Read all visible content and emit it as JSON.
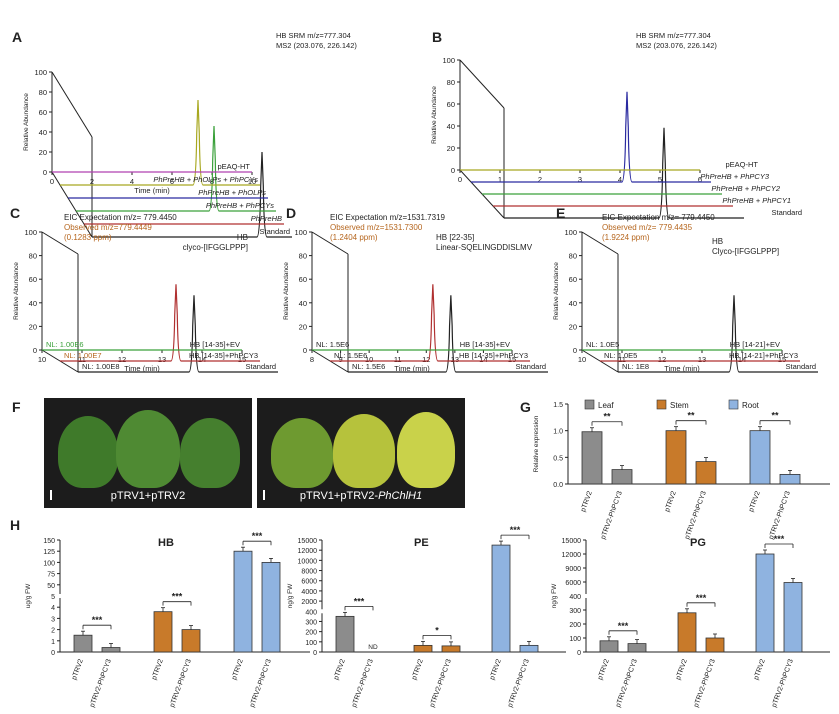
{
  "panels": {
    "A": {
      "letter": "A",
      "annotation_lines": [
        "HB SRM m/z=777.304",
        "MS2 (203.076, 226.142)"
      ],
      "y_axis_label": "Relative Abundance",
      "y_ticks": [
        "0",
        "20",
        "40",
        "60",
        "80",
        "100"
      ],
      "x_axis_label": "Time (min)",
      "x_ticks": [
        "0",
        "2",
        "4",
        "6",
        "8",
        "10"
      ],
      "traces": [
        {
          "label": "Standard",
          "italic": false,
          "color": "#222222"
        },
        {
          "label": "PhPreHB",
          "italic": true,
          "color": "#b03030"
        },
        {
          "label": "PhPreHB + PhPCYs",
          "italic": true,
          "color": "#3aa03a"
        },
        {
          "label": "PhPreHB + PhOLPs",
          "italic": true,
          "color": "#2a2aa0"
        },
        {
          "label": "PhPreHB + PhOLPs + PhPCYs",
          "italic": true,
          "color": "#a8a820"
        },
        {
          "label": "pEAQ-HT",
          "italic": false,
          "color": "#b040b0"
        }
      ]
    },
    "B": {
      "letter": "B",
      "annotation_lines": [
        "HB SRM m/z=777.304",
        "MS2 (203.076, 226.142)"
      ],
      "y_axis_label": "Relative Abundance",
      "y_ticks": [
        "0",
        "20",
        "40",
        "60",
        "80",
        "100"
      ],
      "x_ticks": [
        "0",
        "1",
        "2",
        "3",
        "4",
        "5",
        "6"
      ],
      "traces": [
        {
          "label": "Standard",
          "italic": false,
          "color": "#222222"
        },
        {
          "label": "PhPreHB + PhPCY1",
          "italic": true,
          "color": "#b03030"
        },
        {
          "label": "PhPreHB + PhPCY2",
          "italic": true,
          "color": "#3aa03a"
        },
        {
          "label": "PhPreHB + PhPCY3",
          "italic": true,
          "color": "#2a2aa0"
        },
        {
          "label": "pEAQ-HT",
          "italic": false,
          "color": "#a8a820"
        }
      ]
    },
    "C": {
      "letter": "C",
      "eic_line": "EIC Expectation m/z= 779.4450",
      "observed_lines": [
        "Observed m/z=779.4449",
        "(0.1283 ppm)"
      ],
      "compound_lines": [
        "HB",
        "clyco-[IFGGLPPP]"
      ],
      "y_axis_label": "Relative Abundance",
      "y_ticks": [
        "0",
        "20",
        "40",
        "60",
        "80",
        "100"
      ],
      "x_axis_label": "Time (min)",
      "x_ticks": [
        "10",
        "11",
        "12",
        "13",
        "14",
        "15"
      ],
      "traces": [
        {
          "nl": "NL: 1.00E8",
          "label": "Standard",
          "color": "#222222"
        },
        {
          "nl": "NL: 1.00E7",
          "label": "HB [14-35]+PhPCY3",
          "color": "#b03030"
        },
        {
          "nl": "NL: 1.00E6",
          "label": "HB [14-35]+EV",
          "color": "#3aa03a"
        }
      ]
    },
    "D": {
      "letter": "D",
      "eic_line": "EIC Expectation m/z=1531.7319",
      "observed_lines": [
        "Observed m/z=1531.7300",
        "(1.2404 ppm)"
      ],
      "compound_lines": [
        "HB [22-35]",
        "Linear-SQELINGDDISLMV"
      ],
      "y_axis_label": "Relative Abundance",
      "y_ticks": [
        "0",
        "20",
        "40",
        "60",
        "80",
        "100"
      ],
      "x_axis_label": "Time (min)",
      "x_ticks": [
        "8",
        "9",
        "10",
        "11",
        "12",
        "13",
        "14",
        "15"
      ],
      "traces": [
        {
          "nl": "NL: 1.5E6",
          "label": "Standard",
          "color": "#222222"
        },
        {
          "nl": "NL: 1.5E6",
          "label": "HB [14-35]+PhPCY3",
          "color": "#b03030"
        },
        {
          "nl": "NL: 1.5E6",
          "label": "HB [14-35]+EV",
          "color": "#3aa03a"
        }
      ]
    },
    "E": {
      "letter": "E",
      "eic_line": "EIC Expectation m/z= 779.4450",
      "observed_lines": [
        "Observed m/z= 779.4435",
        "(1.9224 ppm)"
      ],
      "compound_lines": [
        "HB",
        "Clyco-[IFGGLPPP]"
      ],
      "y_axis_label": "Relative Abundance",
      "y_ticks": [
        "0",
        "20",
        "40",
        "60",
        "80",
        "100"
      ],
      "x_axis_label": "Time (min)",
      "x_ticks": [
        "10",
        "11",
        "12",
        "13",
        "14",
        "15"
      ],
      "traces": [
        {
          "nl": "NL: 1E8",
          "label": "Standard",
          "color": "#222222"
        },
        {
          "nl": "NL: 1.0E5",
          "label": "HB [14-21]+PhPCY3",
          "color": "#b03030"
        },
        {
          "nl": "NL: 1.0E5",
          "label": "HB [14-21]+EV",
          "color": "#3aa03a"
        }
      ]
    },
    "F": {
      "letter": "F",
      "photo_left_caption": "pTRV1+pTRV2",
      "photo_right_caption_prefix": "pTRV1+pTRV2-",
      "photo_right_caption_gene": "PhChlH1"
    },
    "G": {
      "letter": "G"
    },
    "H": {
      "letter": "H"
    }
  },
  "colors": {
    "leaf": "#8c8c8c",
    "stem": "#c87a2a",
    "root": "#8fb3e0",
    "ink": "#222222",
    "brown_text": "#b5651d",
    "green_text": "#3aa03a"
  },
  "chart_data": [
    {
      "id": "A",
      "type": "line",
      "title": "HB SRM m/z=777.304 MS2 (203.076, 226.142)",
      "xlabel": "Time (min)",
      "ylabel": "Relative Abundance",
      "xlim": [
        0,
        10
      ],
      "ylim": [
        0,
        100
      ],
      "series": [
        {
          "name": "Standard",
          "peak_x": 8.5,
          "peak_y": 100
        },
        {
          "name": "PhPreHB",
          "peak_x": null,
          "peak_y": 0
        },
        {
          "name": "PhPreHB + PhPCYs",
          "peak_x": 6.9,
          "peak_y": 100
        },
        {
          "name": "PhPreHB + PhOLPs",
          "peak_x": null,
          "peak_y": 0
        },
        {
          "name": "PhPreHB + PhOLPs + PhPCYs",
          "peak_x": 6.9,
          "peak_y": 100
        },
        {
          "name": "pEAQ-HT",
          "peak_x": null,
          "peak_y": 0
        }
      ]
    },
    {
      "id": "B",
      "type": "line",
      "title": "HB SRM m/z=777.304 MS2 (203.076, 226.142)",
      "ylabel": "Relative Abundance",
      "xlim": [
        0,
        6
      ],
      "ylim": [
        0,
        100
      ],
      "series": [
        {
          "name": "Standard",
          "peak_x": 4.0,
          "peak_y": 100
        },
        {
          "name": "PhPreHB + PhPCY1",
          "peak_x": null,
          "peak_y": 0
        },
        {
          "name": "PhPreHB + PhPCY2",
          "peak_x": null,
          "peak_y": 0
        },
        {
          "name": "PhPreHB + PhPCY3",
          "peak_x": 3.9,
          "peak_y": 100
        },
        {
          "name": "pEAQ-HT",
          "peak_x": null,
          "peak_y": 0
        }
      ]
    },
    {
      "id": "C",
      "type": "line",
      "xlabel": "Time (min)",
      "ylabel": "Relative Abundance",
      "xlim": [
        10,
        15
      ],
      "ylim": [
        0,
        100
      ],
      "series": [
        {
          "name": "Standard",
          "peak_x": 12.9,
          "peak_y": 100
        },
        {
          "name": "HB [14-35]+PhPCY3",
          "peak_x": 12.9,
          "peak_y": 100
        },
        {
          "name": "HB [14-35]+EV",
          "peak_x": null,
          "peak_y": 0
        }
      ]
    },
    {
      "id": "D",
      "type": "line",
      "xlabel": "Time (min)",
      "ylabel": "Relative Abundance",
      "xlim": [
        8,
        15
      ],
      "ylim": [
        0,
        100
      ],
      "series": [
        {
          "name": "Standard",
          "peak_x": 11.6,
          "peak_y": 100
        },
        {
          "name": "HB [14-35]+PhPCY3",
          "peak_x": 11.6,
          "peak_y": 100
        },
        {
          "name": "HB [14-35]+EV",
          "peak_x": null,
          "peak_y": 0
        }
      ]
    },
    {
      "id": "E",
      "type": "line",
      "xlabel": "Time (min)",
      "ylabel": "Relative Abundance",
      "xlim": [
        10,
        15
      ],
      "ylim": [
        0,
        100
      ],
      "series": [
        {
          "name": "Standard",
          "peak_x": 12.9,
          "peak_y": 100
        },
        {
          "name": "HB [14-21]+PhPCY3",
          "peak_x": null,
          "peak_y": 0
        },
        {
          "name": "HB [14-21]+EV",
          "peak_x": null,
          "peak_y": 0
        }
      ]
    },
    {
      "id": "G",
      "type": "bar",
      "ylabel": "Relative expression",
      "ylim": [
        0,
        1.5
      ],
      "y_ticks": [
        "0.0",
        "0.5",
        "1.0",
        "1.5"
      ],
      "legend": [
        "Leaf",
        "Stem",
        "Root"
      ],
      "legend_position": "top",
      "groups": [
        {
          "tissue": "Leaf",
          "categories": [
            "pTRV2",
            "pTRV2-PhPCY3"
          ],
          "values": [
            0.98,
            0.27
          ],
          "sig": "**"
        },
        {
          "tissue": "Stem",
          "categories": [
            "pTRV2",
            "pTRV2-PhPCY3"
          ],
          "values": [
            1.0,
            0.42
          ],
          "sig": "**"
        },
        {
          "tissue": "Root",
          "categories": [
            "pTRV2",
            "pTRV2-PhPCY3"
          ],
          "values": [
            1.0,
            0.18
          ],
          "sig": "**"
        }
      ]
    },
    {
      "id": "H-HB",
      "type": "bar",
      "title": "HB",
      "ylabel": "ug/g FW",
      "y_ticks": [
        "0",
        "1",
        "2",
        "3",
        "4",
        "5",
        "50",
        "75",
        "100",
        "125",
        "150"
      ],
      "groups": [
        {
          "tissue": "Leaf",
          "categories": [
            "pTRV2",
            "pTRV2-PhPCY3"
          ],
          "values": [
            1.5,
            0.4
          ],
          "sig": "***"
        },
        {
          "tissue": "Stem",
          "categories": [
            "pTRV2",
            "pTRV2-PhPCY3"
          ],
          "values": [
            3.6,
            2.0
          ],
          "sig": "***"
        },
        {
          "tissue": "Root",
          "categories": [
            "pTRV2",
            "pTRV2-PhPCY3"
          ],
          "values": [
            125,
            100
          ],
          "sig": "***"
        }
      ]
    },
    {
      "id": "H-PE",
      "type": "bar",
      "title": "PE",
      "ylabel": "ng/g FW",
      "y_ticks": [
        "0",
        "100",
        "200",
        "300",
        "400",
        "2000",
        "4000",
        "6000",
        "8000",
        "10000",
        "12000",
        "15000"
      ],
      "groups": [
        {
          "tissue": "Leaf",
          "categories": [
            "pTRV2",
            "pTRV2-PhPCY3"
          ],
          "values": [
            350,
            0
          ],
          "labels": [
            "",
            "ND"
          ],
          "sig": "***"
        },
        {
          "tissue": "Stem",
          "categories": [
            "pTRV2",
            "pTRV2-PhPCY3"
          ],
          "values": [
            65,
            60
          ],
          "sig": "*"
        },
        {
          "tissue": "Root",
          "categories": [
            "pTRV2",
            "pTRV2-PhPCY3"
          ],
          "values": [
            13500,
            65
          ],
          "sig": "***"
        }
      ]
    },
    {
      "id": "H-PG",
      "type": "bar",
      "title": "PG",
      "ylabel": "ng/g FW",
      "y_ticks": [
        "0",
        "100",
        "200",
        "300",
        "400",
        "6000",
        "9000",
        "12000",
        "15000"
      ],
      "groups": [
        {
          "tissue": "Leaf",
          "categories": [
            "pTRV2",
            "pTRV2-PhPCY3"
          ],
          "values": [
            80,
            60
          ],
          "sig": "***"
        },
        {
          "tissue": "Stem",
          "categories": [
            "pTRV2",
            "pTRV2-PhPCY3"
          ],
          "values": [
            280,
            100
          ],
          "sig": "***"
        },
        {
          "tissue": "Root",
          "categories": [
            "pTRV2",
            "pTRV2-PhPCY3"
          ],
          "values": [
            12000,
            5800
          ],
          "sig": "***"
        }
      ]
    }
  ]
}
